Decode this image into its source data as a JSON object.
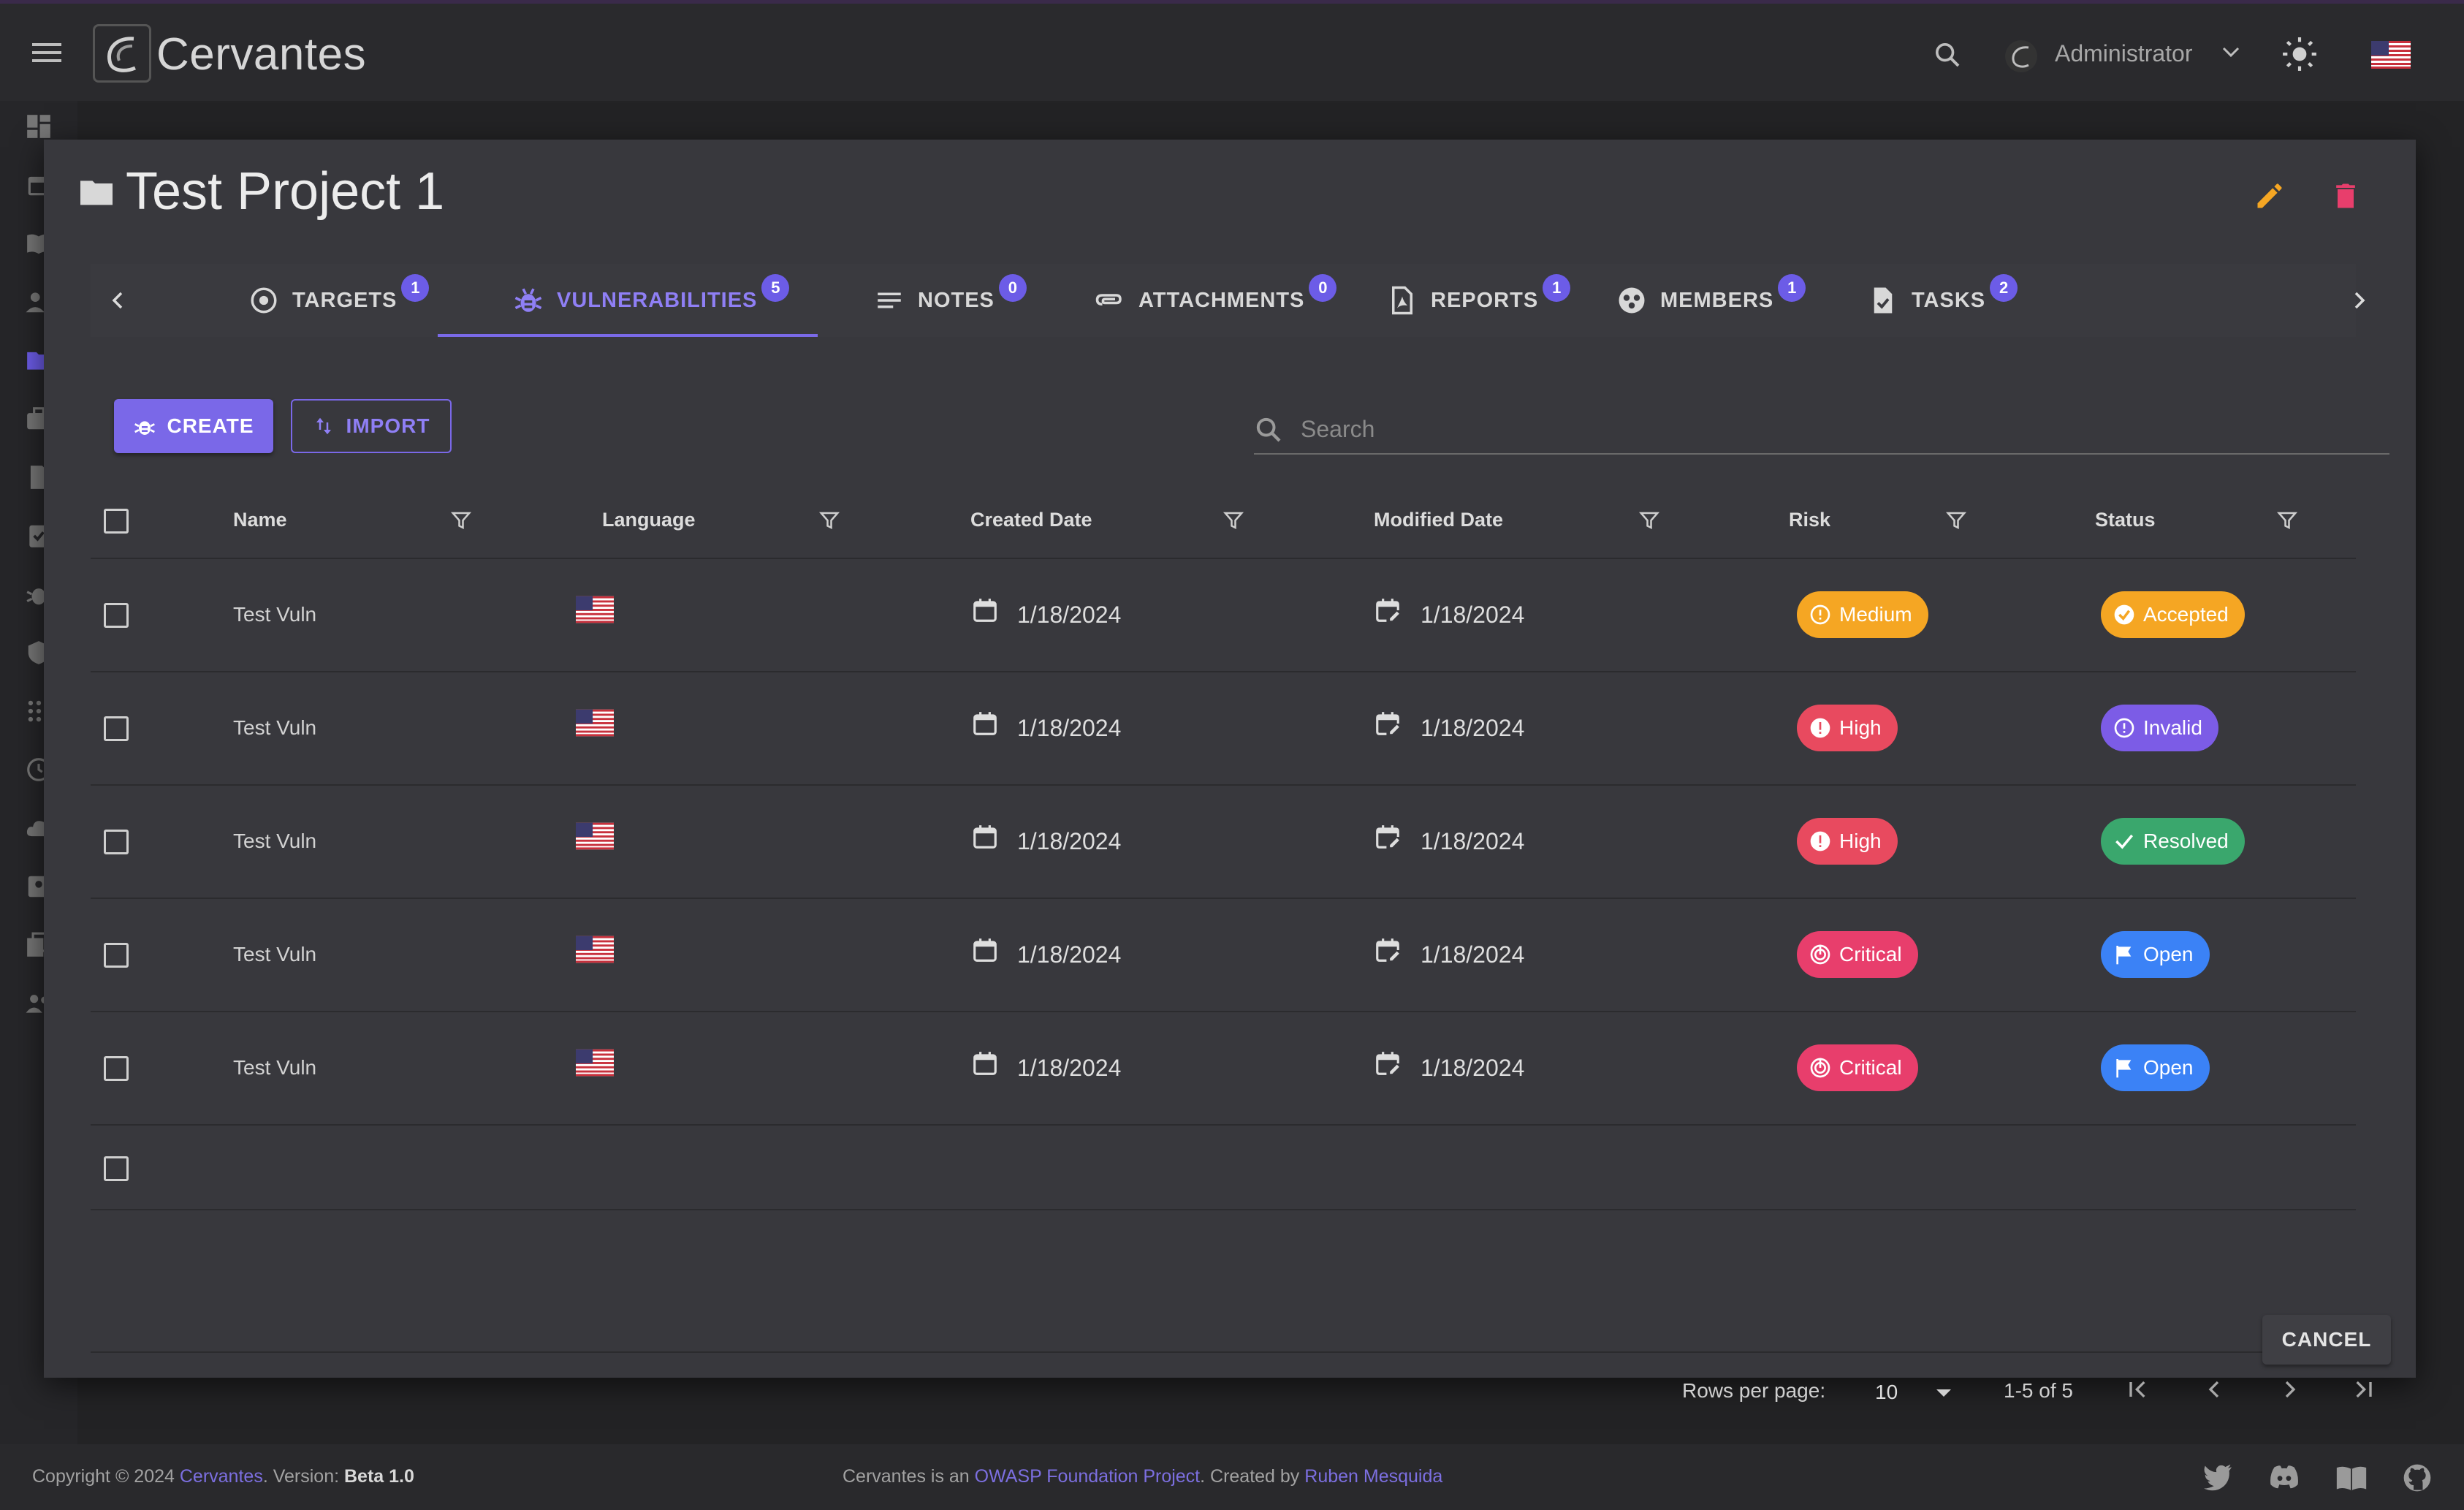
{
  "app": {
    "brand": "Cervantes",
    "user_name": "Administrator"
  },
  "dialog": {
    "title": "Test Project 1",
    "tabs": [
      {
        "label": "TARGETS",
        "count": "1",
        "icon": "target-icon"
      },
      {
        "label": "VULNERABILITIES",
        "count": "5",
        "icon": "bug-icon",
        "active": true
      },
      {
        "label": "NOTES",
        "count": "0",
        "icon": "notes-icon"
      },
      {
        "label": "ATTACHMENTS",
        "count": "0",
        "icon": "paperclip-icon"
      },
      {
        "label": "REPORTS",
        "count": "1",
        "icon": "pdf-icon"
      },
      {
        "label": "MEMBERS",
        "count": "1",
        "icon": "members-icon"
      },
      {
        "label": "TASKS",
        "count": "2",
        "icon": "task-icon"
      }
    ],
    "create_label": "CREATE",
    "import_label": "IMPORT",
    "search_placeholder": "Search",
    "cancel_label": "CANCEL"
  },
  "table": {
    "columns": [
      "Name",
      "Language",
      "Created Date",
      "Modified Date",
      "Risk",
      "Status"
    ],
    "rows": [
      {
        "name": "Test Vuln",
        "language": "en-US",
        "created": "1/18/2024",
        "modified": "1/18/2024",
        "risk": "Medium",
        "status": "Accepted"
      },
      {
        "name": "Test Vuln",
        "language": "en-US",
        "created": "1/18/2024",
        "modified": "1/18/2024",
        "risk": "High",
        "status": "Invalid"
      },
      {
        "name": "Test Vuln",
        "language": "en-US",
        "created": "1/18/2024",
        "modified": "1/18/2024",
        "risk": "High",
        "status": "Resolved"
      },
      {
        "name": "Test Vuln",
        "language": "en-US",
        "created": "1/18/2024",
        "modified": "1/18/2024",
        "risk": "Critical",
        "status": "Open"
      },
      {
        "name": "Test Vuln",
        "language": "en-US",
        "created": "1/18/2024",
        "modified": "1/18/2024",
        "risk": "Critical",
        "status": "Open"
      }
    ],
    "rows_per_page_label": "Rows per page:",
    "rows_per_page": "10",
    "range": "1-5 of 5"
  },
  "colors": {
    "accent": "#7a68e8",
    "medium": "#f5a623",
    "high": "#e84a5f",
    "critical": "#e83e6c",
    "accepted": "#f5a623",
    "invalid": "#7c5ce6",
    "resolved": "#3aa76d",
    "open": "#3b82f6",
    "edit": "#f5a623",
    "delete": "#e83e6c"
  },
  "footer": {
    "copyright_prefix": "Copyright © 2024 ",
    "copyright_link": "Cervantes",
    "version_prefix": ". Version: ",
    "version": "Beta 1.0",
    "mid_prefix": "Cervantes is an ",
    "owasp_link": "OWASP Foundation Project",
    "created_by": ". Created by ",
    "author_link": "Ruben Mesquida"
  }
}
